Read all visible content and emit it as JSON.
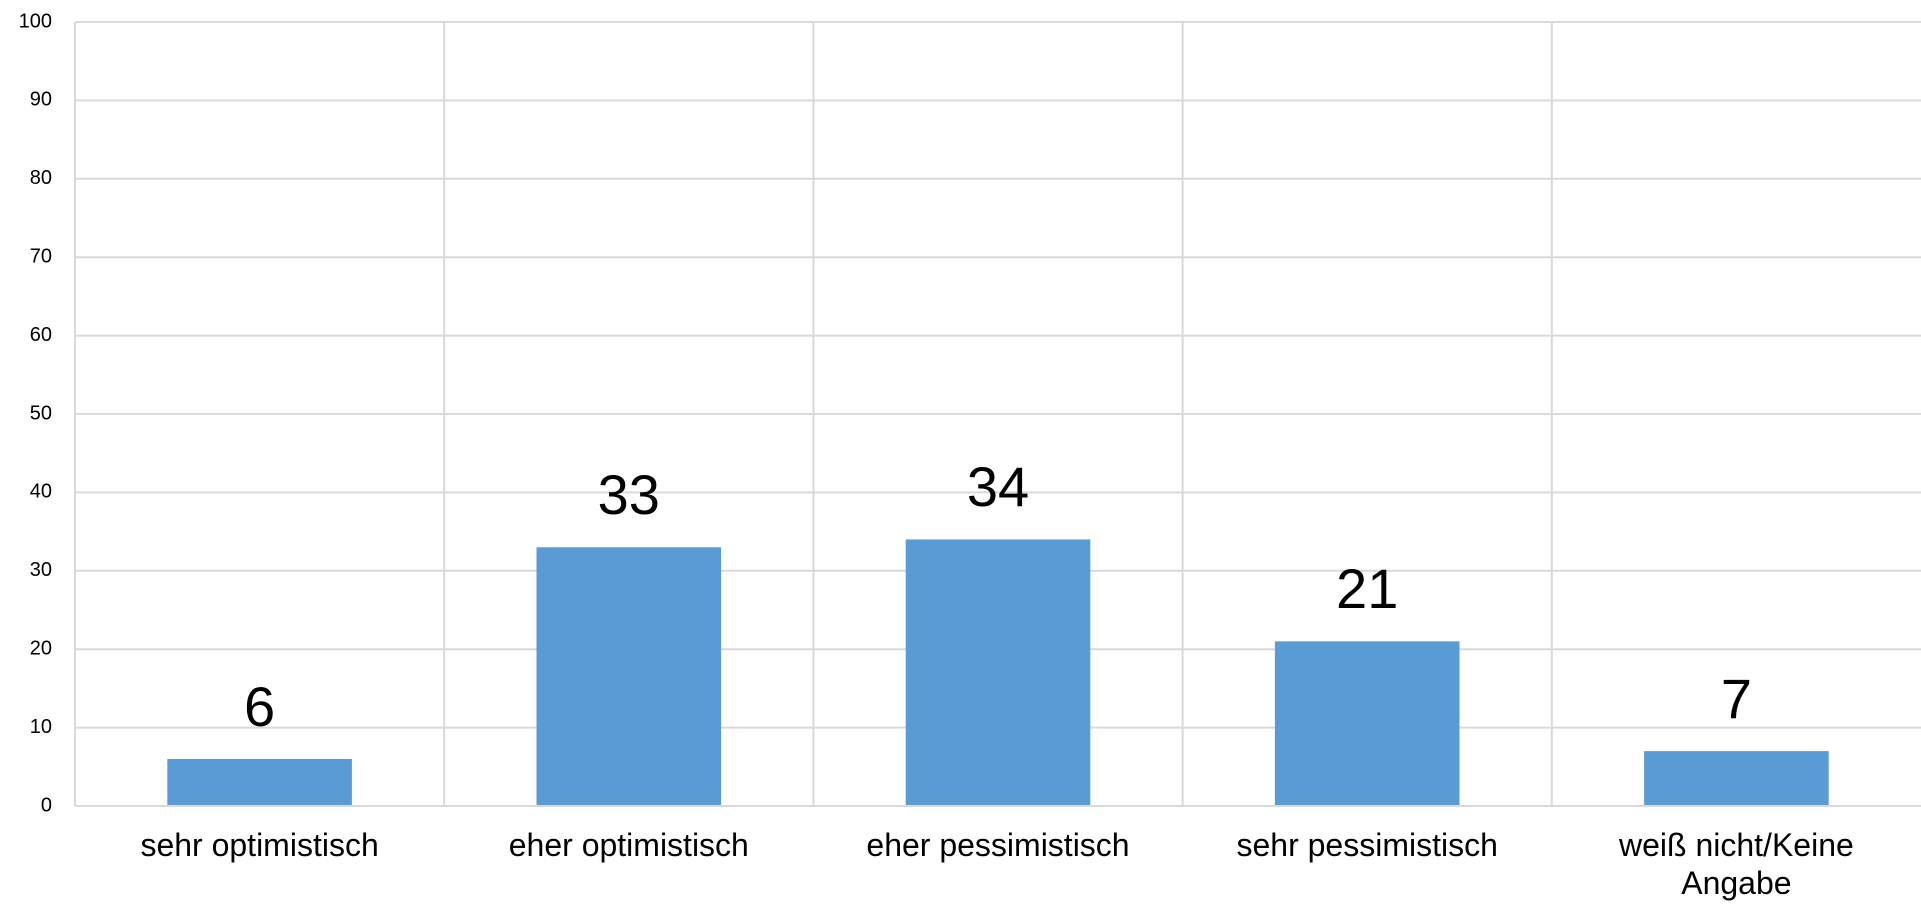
{
  "chart_data": {
    "type": "bar",
    "categories": [
      "sehr optimistisch",
      "eher optimistisch",
      "eher pessimistisch",
      "sehr pessimistisch",
      "weiß nicht/Keine Angabe"
    ],
    "values": [
      6,
      33,
      34,
      21,
      7
    ],
    "color": "#5b9bd5",
    "ylim": [
      0,
      100
    ],
    "yticks": [
      0,
      10,
      20,
      30,
      40,
      50,
      60,
      70,
      80,
      90,
      100
    ],
    "grid": true
  }
}
